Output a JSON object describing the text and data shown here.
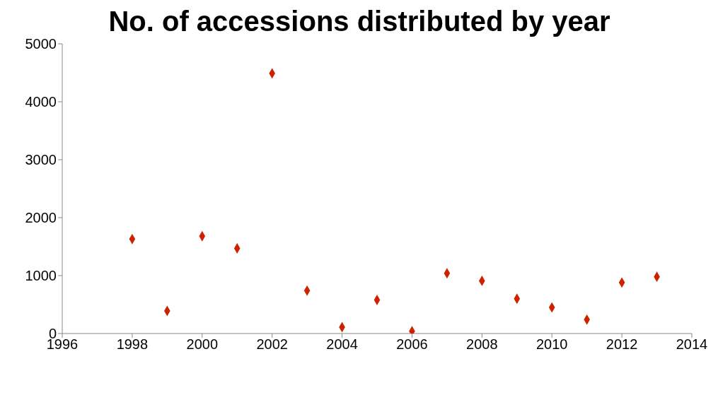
{
  "chart_data": {
    "type": "scatter",
    "title": "No. of accessions distributed by year",
    "x": [
      1998,
      1999,
      2000,
      2001,
      2002,
      2003,
      2004,
      2005,
      2006,
      2007,
      2008,
      2009,
      2010,
      2011,
      2012,
      2013
    ],
    "series": [
      {
        "color": "#cc2200",
        "values": [
          1630,
          390,
          1680,
          1470,
          4490,
          740,
          110,
          580,
          40,
          1040,
          910,
          600,
          450,
          240,
          880,
          980
        ]
      }
    ],
    "xlim": [
      1996,
      2014
    ],
    "xticks": [
      1996,
      1998,
      2000,
      2002,
      2004,
      2006,
      2008,
      2010,
      2012,
      2014
    ],
    "ylim": [
      0,
      5000
    ],
    "yticks": [
      0,
      1000,
      2000,
      3000,
      4000,
      5000
    ],
    "marker": "diamond",
    "grid": false,
    "legend": false
  }
}
